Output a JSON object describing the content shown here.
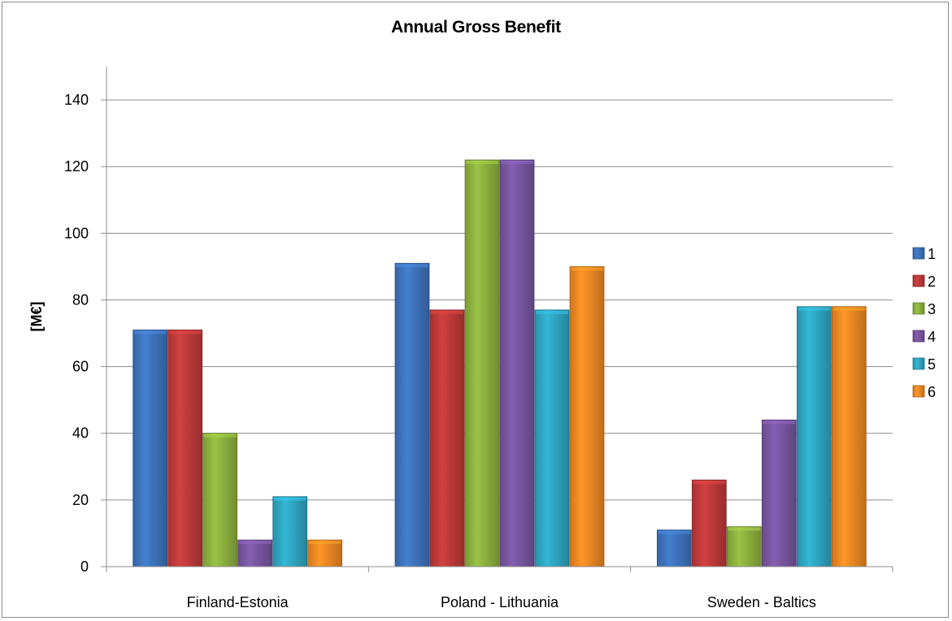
{
  "chart_data": {
    "type": "bar",
    "title": "Annual Gross Benefit",
    "xlabel": "",
    "ylabel": "[M€]",
    "ylim": [
      0,
      150
    ],
    "yticks": [
      0,
      20,
      40,
      60,
      80,
      100,
      120,
      140
    ],
    "grid": true,
    "legend": "right",
    "categories": [
      "Finland-Estonia",
      "Poland - Lithuania",
      "Sweden - Baltics"
    ],
    "series": [
      {
        "name": "1",
        "color": "#3f76c0",
        "values": [
          71,
          91,
          11
        ]
      },
      {
        "name": "2",
        "color": "#c23b3b",
        "values": [
          71,
          77,
          26
        ]
      },
      {
        "name": "3",
        "color": "#8fb540",
        "values": [
          40,
          122,
          12
        ]
      },
      {
        "name": "4",
        "color": "#7b58a4",
        "values": [
          8,
          122,
          44
        ]
      },
      {
        "name": "5",
        "color": "#2fa9c6",
        "values": [
          21,
          77,
          78
        ]
      },
      {
        "name": "6",
        "color": "#f38b23",
        "values": [
          8,
          90,
          78
        ]
      }
    ]
  }
}
